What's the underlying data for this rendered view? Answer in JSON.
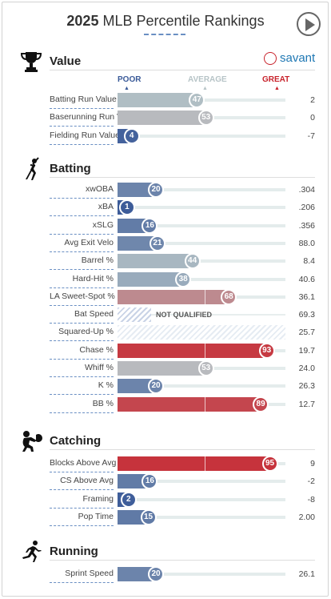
{
  "header": {
    "year": "2025",
    "title": "MLB Percentile Rankings",
    "play_icon": "play-icon"
  },
  "brand": {
    "name": "savant",
    "icon": "baseball-icon"
  },
  "scale": {
    "poor": "POOR",
    "average": "AVERAGE",
    "great": "GREAT"
  },
  "colors": {
    "poor": "#3a5a98",
    "average": "#b7c4c7",
    "great": "#c8232c"
  },
  "sections": [
    {
      "title": "Value",
      "icon": "trophy-icon",
      "rows": [
        {
          "label": "Batting Run Value",
          "percentile": 47,
          "value": "2"
        },
        {
          "label": "Baserunning Run Value",
          "percentile": 53,
          "value": "0"
        },
        {
          "label": "Fielding Run Value",
          "percentile": 4,
          "value": "-7"
        }
      ]
    },
    {
      "title": "Batting",
      "icon": "batter-icon",
      "rows": [
        {
          "label": "xwOBA",
          "percentile": 20,
          "value": ".304"
        },
        {
          "label": "xBA",
          "percentile": 1,
          "value": ".206"
        },
        {
          "label": "xSLG",
          "percentile": 16,
          "value": ".356"
        },
        {
          "label": "Avg Exit Velo",
          "percentile": 21,
          "value": "88.0"
        },
        {
          "label": "Barrel %",
          "percentile": 44,
          "value": "8.4"
        },
        {
          "label": "Hard-Hit %",
          "percentile": 38,
          "value": "40.6"
        },
        {
          "label": "LA Sweet-Spot %",
          "percentile": 68,
          "value": "36.1"
        },
        {
          "label": "Bat Speed",
          "percentile": null,
          "status": "NOT QUALIFIED",
          "value": "69.3"
        },
        {
          "label": "Squared-Up %",
          "percentile": null,
          "status": "",
          "value": "25.7"
        },
        {
          "label": "Chase %",
          "percentile": 93,
          "value": "19.7"
        },
        {
          "label": "Whiff %",
          "percentile": 53,
          "value": "24.0"
        },
        {
          "label": "K %",
          "percentile": 20,
          "value": "26.3"
        },
        {
          "label": "BB %",
          "percentile": 89,
          "value": "12.7"
        }
      ]
    },
    {
      "title": "Catching",
      "icon": "catcher-icon",
      "rows": [
        {
          "label": "Blocks Above Avg",
          "percentile": 95,
          "value": "9"
        },
        {
          "label": "CS Above Avg",
          "percentile": 16,
          "value": "-2"
        },
        {
          "label": "Framing",
          "percentile": 2,
          "value": "-8"
        },
        {
          "label": "Pop Time",
          "percentile": 15,
          "value": "2.00"
        }
      ]
    },
    {
      "title": "Running",
      "icon": "runner-icon",
      "rows": [
        {
          "label": "Sprint Speed",
          "percentile": 20,
          "value": "26.1"
        }
      ]
    }
  ]
}
